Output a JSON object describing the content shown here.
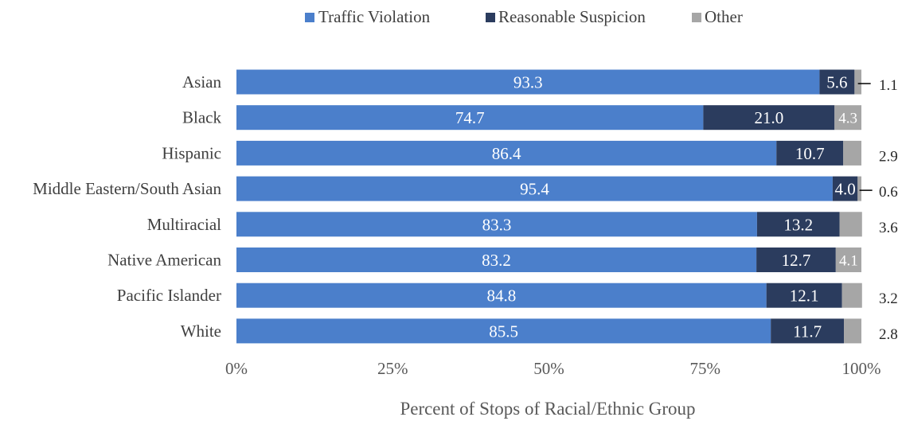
{
  "chart_data": {
    "type": "bar",
    "orientation": "horizontal",
    "stacked": true,
    "stack_mode": "percent",
    "categories": [
      "Asian",
      "Black",
      "Hispanic",
      "Middle Eastern/South Asian",
      "Multiracial",
      "Native American",
      "Pacific Islander",
      "White"
    ],
    "series": [
      {
        "name": "Traffic Violation",
        "color": "#4b7fcb",
        "values": [
          93.3,
          74.7,
          86.4,
          95.4,
          83.3,
          83.2,
          84.8,
          85.5
        ]
      },
      {
        "name": "Reasonable Suspicion",
        "color": "#2b3c5e",
        "values": [
          5.6,
          21.0,
          10.7,
          4.0,
          13.2,
          12.7,
          12.1,
          11.7
        ]
      },
      {
        "name": "Other",
        "color": "#a6a6a6",
        "values": [
          1.1,
          4.3,
          2.9,
          0.6,
          3.6,
          4.1,
          3.2,
          2.8
        ]
      }
    ],
    "xlabel": "Percent of Stops of Racial/Ethnic Group",
    "ylabel": "",
    "xlim": [
      0,
      100
    ],
    "x_ticks": [
      "0%",
      "25%",
      "50%",
      "75%",
      "100%"
    ],
    "legend_position": "top-center",
    "grid": false
  }
}
